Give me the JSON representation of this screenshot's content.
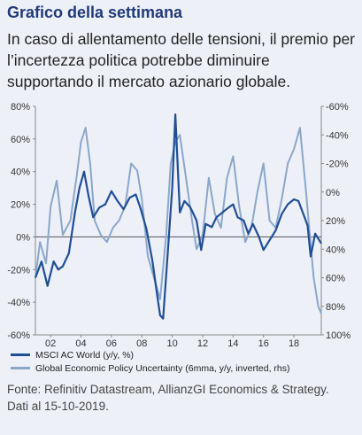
{
  "heading": "Grafico della settimana",
  "subheading": "In caso di allentamento delle tensioni, il premio per l’incertezza politica potrebbe diminuire supportando il mercato azionario globale.",
  "source_line_1": "Fonte: Refinitiv Datastream, AllianzGI Economics & Strategy.",
  "source_line_2": "Dati al 15-10-2019.",
  "chart_data": {
    "type": "line",
    "title": "",
    "xlabel": "",
    "ylabel": "",
    "y_left_range": [
      -60,
      80
    ],
    "y_right_range": [
      -60,
      100
    ],
    "y_right_inverted": true,
    "x_range": [
      2001.0,
      2019.8
    ],
    "grid": false,
    "zero_line": true,
    "legend_position": "bottom",
    "x_tick_labels": [
      "02",
      "04",
      "06",
      "08",
      "10",
      "12",
      "14",
      "16",
      "18"
    ],
    "x_tick_positions": [
      2002,
      2004,
      2006,
      2008,
      2010,
      2012,
      2014,
      2016,
      2018
    ],
    "y_left_tick_labels": [
      "80%",
      "60%",
      "40%",
      "20%",
      "0%",
      "-20%",
      "-40%",
      "-60%"
    ],
    "y_left_tick_values": [
      80,
      60,
      40,
      20,
      0,
      -20,
      -40,
      -60
    ],
    "y_right_tick_labels": [
      "-60%",
      "-40%",
      "-20%",
      "0%",
      "20%",
      "40%",
      "60%",
      "80%",
      "100%"
    ],
    "y_right_tick_values": [
      -60,
      -40,
      -20,
      0,
      20,
      40,
      60,
      80,
      100
    ],
    "series": [
      {
        "name": "MSCI AC World (y/y, %)",
        "axis": "left",
        "color": "#1f4e96",
        "x": [
          2001.0,
          2001.4,
          2001.8,
          2002.2,
          2002.5,
          2002.8,
          2003.2,
          2003.6,
          2003.9,
          2004.2,
          2004.5,
          2004.8,
          2005.2,
          2005.6,
          2006.0,
          2006.4,
          2006.8,
          2007.2,
          2007.6,
          2007.9,
          2008.3,
          2008.7,
          2009.0,
          2009.2,
          2009.4,
          2009.7,
          2010.0,
          2010.2,
          2010.5,
          2010.8,
          2011.2,
          2011.6,
          2011.9,
          2012.2,
          2012.6,
          2012.9,
          2013.3,
          2013.7,
          2014.0,
          2014.3,
          2014.7,
          2015.0,
          2015.3,
          2015.7,
          2016.0,
          2016.4,
          2016.8,
          2017.2,
          2017.6,
          2018.0,
          2018.3,
          2018.7,
          2018.9,
          2019.1,
          2019.4,
          2019.8
        ],
        "y": [
          -25,
          -15,
          -30,
          -15,
          -20,
          -18,
          -10,
          15,
          30,
          40,
          25,
          12,
          18,
          20,
          28,
          22,
          17,
          24,
          26,
          18,
          5,
          -15,
          -35,
          -48,
          -50,
          -10,
          30,
          75,
          15,
          22,
          18,
          10,
          -8,
          8,
          6,
          12,
          15,
          18,
          20,
          12,
          10,
          2,
          8,
          0,
          -8,
          -2,
          4,
          14,
          20,
          23,
          22,
          12,
          7,
          -12,
          2,
          -4
        ]
      },
      {
        "name": "Global Economic Policy Uncertainty (6mma, y/y, inverted, rhs)",
        "axis": "right",
        "color": "#8aa7ca",
        "x": [
          2001.0,
          2001.3,
          2001.7,
          2002.0,
          2002.4,
          2002.8,
          2003.3,
          2003.7,
          2004.0,
          2004.3,
          2004.6,
          2004.9,
          2005.3,
          2005.7,
          2006.1,
          2006.5,
          2006.9,
          2007.3,
          2007.7,
          2008.0,
          2008.4,
          2008.8,
          2009.2,
          2009.6,
          2009.9,
          2010.2,
          2010.5,
          2010.9,
          2011.3,
          2011.6,
          2012.0,
          2012.4,
          2012.8,
          2013.2,
          2013.6,
          2014.0,
          2014.4,
          2014.8,
          2015.2,
          2015.6,
          2016.0,
          2016.4,
          2016.8,
          2017.2,
          2017.6,
          2018.0,
          2018.4,
          2018.8,
          2019.0,
          2019.3,
          2019.6,
          2019.8
        ],
        "y": [
          60,
          35,
          50,
          10,
          -8,
          30,
          20,
          -10,
          -35,
          -45,
          -20,
          20,
          30,
          35,
          25,
          20,
          10,
          -20,
          -15,
          5,
          45,
          60,
          75,
          30,
          -20,
          -35,
          -40,
          -10,
          20,
          40,
          30,
          -10,
          15,
          25,
          -10,
          -25,
          10,
          35,
          25,
          0,
          -20,
          20,
          25,
          5,
          -20,
          -30,
          -45,
          0,
          25,
          60,
          80,
          85
        ]
      }
    ]
  }
}
